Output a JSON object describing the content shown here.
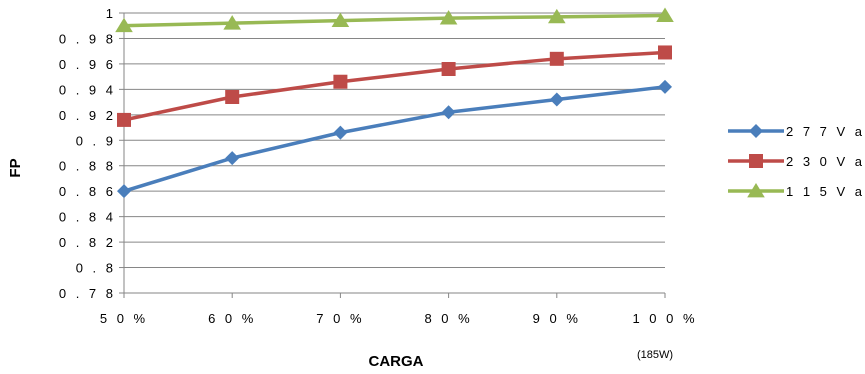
{
  "chart_data": {
    "type": "line",
    "categories": [
      "5 0 %",
      "6 0 %",
      "7 0 %",
      "8 0 %",
      "9 0 %",
      "1 0 0 %"
    ],
    "xlabel": "CARGA",
    "xnote": "(185W)",
    "ylabel": "FP",
    "ylim": [
      0.78,
      1.0
    ],
    "yticks": [
      "0 . 7 8",
      "0 . 8",
      "0 . 8 2",
      "0 . 8 4",
      "0 . 8 6",
      "0 . 8 8",
      "0 . 9",
      "0 . 9 2",
      "0 . 9 4",
      "0 . 9 6",
      "0 . 9 8",
      "1"
    ],
    "grid": true,
    "legend_position": "right",
    "series": [
      {
        "name": "2 7 7 V a c",
        "color": "#4a7ebb",
        "marker": "diamond",
        "values": [
          0.86,
          0.886,
          0.906,
          0.922,
          0.932,
          0.942
        ]
      },
      {
        "name": "2 3 0 V a c",
        "color": "#be4b48",
        "marker": "square",
        "values": [
          0.916,
          0.934,
          0.946,
          0.956,
          0.964,
          0.969
        ]
      },
      {
        "name": "1 1 5 V a c",
        "color": "#98b954",
        "marker": "triangle",
        "values": [
          0.99,
          0.992,
          0.994,
          0.996,
          0.997,
          0.998
        ]
      }
    ]
  }
}
